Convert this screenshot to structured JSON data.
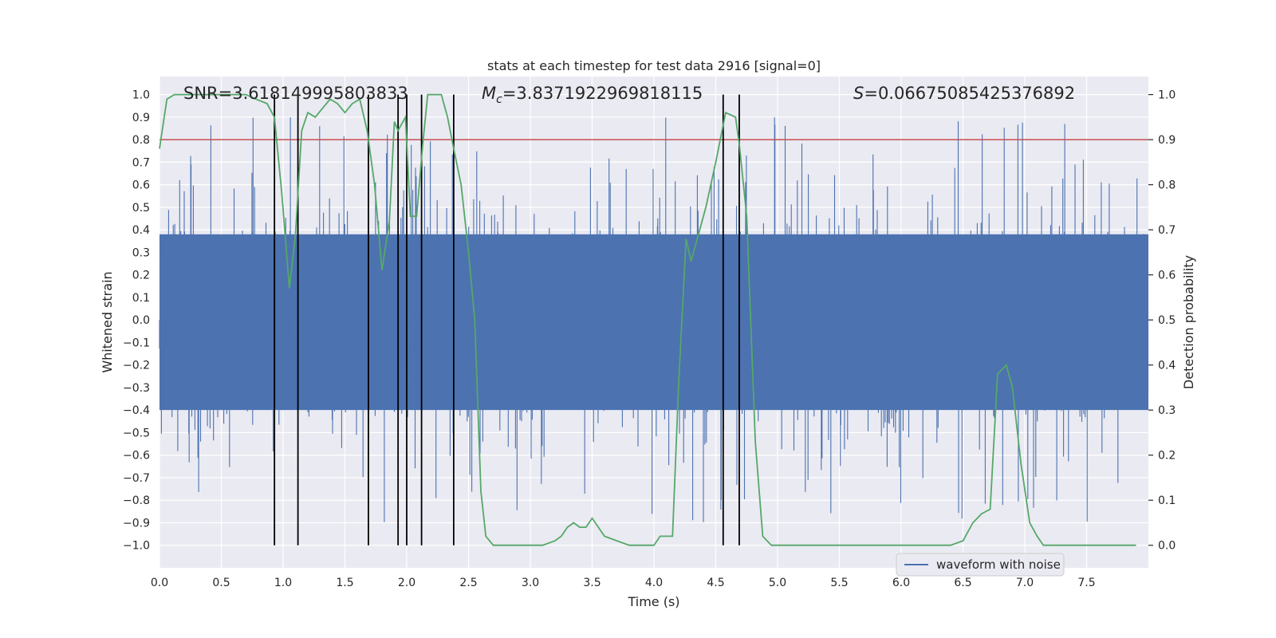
{
  "chart_data": {
    "type": "line",
    "title": "stats at each timestep for test data 2916 [signal=0]",
    "xlabel": "Time (s)",
    "ylabel": "Whitened strain",
    "y2label": "Detection probability",
    "xlim": [
      0.0,
      8.0
    ],
    "ylim": [
      -1.1,
      1.08
    ],
    "y2lim": [
      -0.05,
      1.04
    ],
    "grid": true,
    "legend_position": "lower-right",
    "x_ticks": [
      "0.0",
      "0.5",
      "1.0",
      "1.5",
      "2.0",
      "2.5",
      "3.0",
      "3.5",
      "4.0",
      "4.5",
      "5.0",
      "5.5",
      "6.0",
      "6.5",
      "7.0",
      "7.5"
    ],
    "y_ticks": [
      "1.0",
      "0.9",
      "0.8",
      "0.7",
      "0.6",
      "0.5",
      "0.4",
      "0.3",
      "0.2",
      "0.1",
      "0.0",
      "−0.1",
      "−0.2",
      "−0.3",
      "−0.4",
      "−0.5",
      "−0.6",
      "−0.7",
      "−0.8",
      "−0.9",
      "−1.0"
    ],
    "y2_ticks": [
      "1.0",
      "0.9",
      "0.8",
      "0.7",
      "0.6",
      "0.5",
      "0.4",
      "0.3",
      "0.2",
      "0.1",
      "0.0"
    ],
    "annotations": {
      "snr": "SNR=3.618149995803833",
      "mc_symbol": "M",
      "mc_sub": "c",
      "mc_value": "=3.8371922969818115",
      "s_symbol": "S",
      "s_value": "=0.06675085425376892"
    },
    "threshold": {
      "value": 0.9,
      "axis": "y2",
      "color": "#c44e52"
    },
    "vertical_markers": [
      0.93,
      1.12,
      1.69,
      1.93,
      2.0,
      2.12,
      2.38,
      4.56,
      4.69
    ],
    "colors": {
      "waveform": "#4c72b0",
      "probability": "#55a868",
      "marker": "#000000",
      "background": "#eaeaf2"
    },
    "series": [
      {
        "name": "waveform with noise",
        "axis": "y",
        "summary": "dense noise, typical range about -0.6 to 0.6 with spikes up to 0.98 and down to -0.99"
      },
      {
        "axis": "y2",
        "x": [
          0.0,
          0.06,
          0.12,
          0.2,
          0.3,
          0.4,
          0.5,
          0.6,
          0.7,
          0.78,
          0.87,
          0.93,
          0.99,
          1.05,
          1.1,
          1.15,
          1.2,
          1.26,
          1.32,
          1.38,
          1.44,
          1.5,
          1.56,
          1.62,
          1.68,
          1.74,
          1.8,
          1.86,
          1.9,
          1.93,
          1.99,
          2.03,
          2.08,
          2.13,
          2.17,
          2.22,
          2.28,
          2.33,
          2.38,
          2.44,
          2.5,
          2.55,
          2.6,
          2.64,
          2.7,
          2.8,
          2.9,
          3.0,
          3.1,
          3.2,
          3.25,
          3.3,
          3.35,
          3.4,
          3.45,
          3.5,
          3.55,
          3.6,
          3.7,
          3.8,
          3.9,
          4.0,
          4.05,
          4.1,
          4.15,
          4.2,
          4.26,
          4.3,
          4.35,
          4.42,
          4.5,
          4.58,
          4.66,
          4.69,
          4.75,
          4.82,
          4.88,
          4.95,
          5.0,
          5.1,
          5.3,
          5.45,
          5.55,
          5.7,
          6.0,
          6.2,
          6.4,
          6.5,
          6.58,
          6.65,
          6.72,
          6.78,
          6.85,
          6.9,
          6.97,
          7.04,
          7.1,
          7.15,
          7.2,
          7.3,
          7.5,
          7.9
        ],
        "y": [
          0.88,
          0.99,
          1.0,
          1.0,
          1.0,
          1.0,
          1.0,
          1.0,
          1.0,
          0.99,
          0.98,
          0.95,
          0.78,
          0.57,
          0.69,
          0.92,
          0.96,
          0.95,
          0.97,
          0.99,
          0.98,
          0.96,
          0.98,
          0.99,
          0.92,
          0.8,
          0.61,
          0.72,
          0.94,
          0.92,
          0.95,
          0.73,
          0.73,
          0.89,
          1.0,
          1.0,
          1.0,
          0.95,
          0.88,
          0.8,
          0.65,
          0.5,
          0.12,
          0.02,
          0.0,
          0.0,
          0.0,
          0.0,
          0.0,
          0.01,
          0.02,
          0.04,
          0.05,
          0.04,
          0.04,
          0.06,
          0.04,
          0.02,
          0.01,
          0.0,
          0.0,
          0.0,
          0.02,
          0.02,
          0.02,
          0.36,
          0.68,
          0.63,
          0.68,
          0.75,
          0.85,
          0.96,
          0.95,
          0.89,
          0.73,
          0.23,
          0.02,
          0.0,
          0.0,
          0.0,
          0.0,
          0.0,
          0.0,
          0.0,
          0.0,
          0.0,
          0.0,
          0.01,
          0.05,
          0.07,
          0.08,
          0.38,
          0.4,
          0.35,
          0.18,
          0.05,
          0.02,
          0.0,
          0.0,
          0.0,
          0.0,
          0.0
        ]
      }
    ]
  }
}
